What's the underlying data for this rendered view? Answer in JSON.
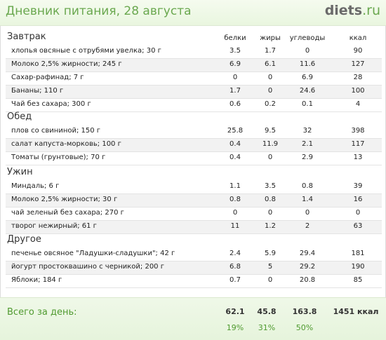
{
  "header": {
    "title": "Дневник питания, 28 августа",
    "logo_main": "diets",
    "logo_tld": ".ru"
  },
  "columns": {
    "protein": "белки",
    "fat": "жиры",
    "carbs": "углеводы",
    "kcal": "ккал"
  },
  "sections": [
    {
      "title": "Завтрак",
      "items": [
        {
          "name": "хлопья овсяные с отрубями увелка; 30 г",
          "protein": "3.5",
          "fat": "1.7",
          "carbs": "0",
          "kcal": "90"
        },
        {
          "name": "Молоко 2,5% жирности; 245 г",
          "protein": "6.9",
          "fat": "6.1",
          "carbs": "11.6",
          "kcal": "127"
        },
        {
          "name": "Сахар-рафинад; 7 г",
          "protein": "0",
          "fat": "0",
          "carbs": "6.9",
          "kcal": "28"
        },
        {
          "name": "Бананы; 110 г",
          "protein": "1.7",
          "fat": "0",
          "carbs": "24.6",
          "kcal": "100"
        },
        {
          "name": "Чай без сахара; 300 г",
          "protein": "0.6",
          "fat": "0.2",
          "carbs": "0.1",
          "kcal": "4"
        }
      ]
    },
    {
      "title": "Обед",
      "items": [
        {
          "name": "плов со свининой; 150 г",
          "protein": "25.8",
          "fat": "9.5",
          "carbs": "32",
          "kcal": "398"
        },
        {
          "name": "салат капуста-морковь; 100 г",
          "protein": "0.4",
          "fat": "11.9",
          "carbs": "2.1",
          "kcal": "117"
        },
        {
          "name": "Томаты (грунтовые); 70 г",
          "protein": "0.4",
          "fat": "0",
          "carbs": "2.9",
          "kcal": "13"
        }
      ]
    },
    {
      "title": "Ужин",
      "items": [
        {
          "name": "Миндаль; 6 г",
          "protein": "1.1",
          "fat": "3.5",
          "carbs": "0.8",
          "kcal": "39"
        },
        {
          "name": "Молоко 2,5% жирности; 30 г",
          "protein": "0.8",
          "fat": "0.8",
          "carbs": "1.4",
          "kcal": "16"
        },
        {
          "name": "чай зеленый без сахара; 270 г",
          "protein": "0",
          "fat": "0",
          "carbs": "0",
          "kcal": "0"
        },
        {
          "name": "творог нежирный; 61 г",
          "protein": "11",
          "fat": "1.2",
          "carbs": "2",
          "kcal": "63"
        }
      ]
    },
    {
      "title": "Другое",
      "items": [
        {
          "name": "печенье овсяное \"Ладушки-сладушки\"; 42 г",
          "protein": "2.4",
          "fat": "5.9",
          "carbs": "29.4",
          "kcal": "181"
        },
        {
          "name": "йогурт простоквашино с черникой; 200 г",
          "protein": "6.8",
          "fat": "5",
          "carbs": "29.2",
          "kcal": "190"
        },
        {
          "name": "Яблоки; 184 г",
          "protein": "0.7",
          "fat": "0",
          "carbs": "20.8",
          "kcal": "85"
        }
      ]
    }
  ],
  "totals": {
    "label": "Всего за день:",
    "protein": "62.1",
    "fat": "45.8",
    "carbs": "163.8",
    "kcal": "1451 ккал",
    "protein_pct": "19%",
    "fat_pct": "31%",
    "carbs_pct": "50%"
  }
}
